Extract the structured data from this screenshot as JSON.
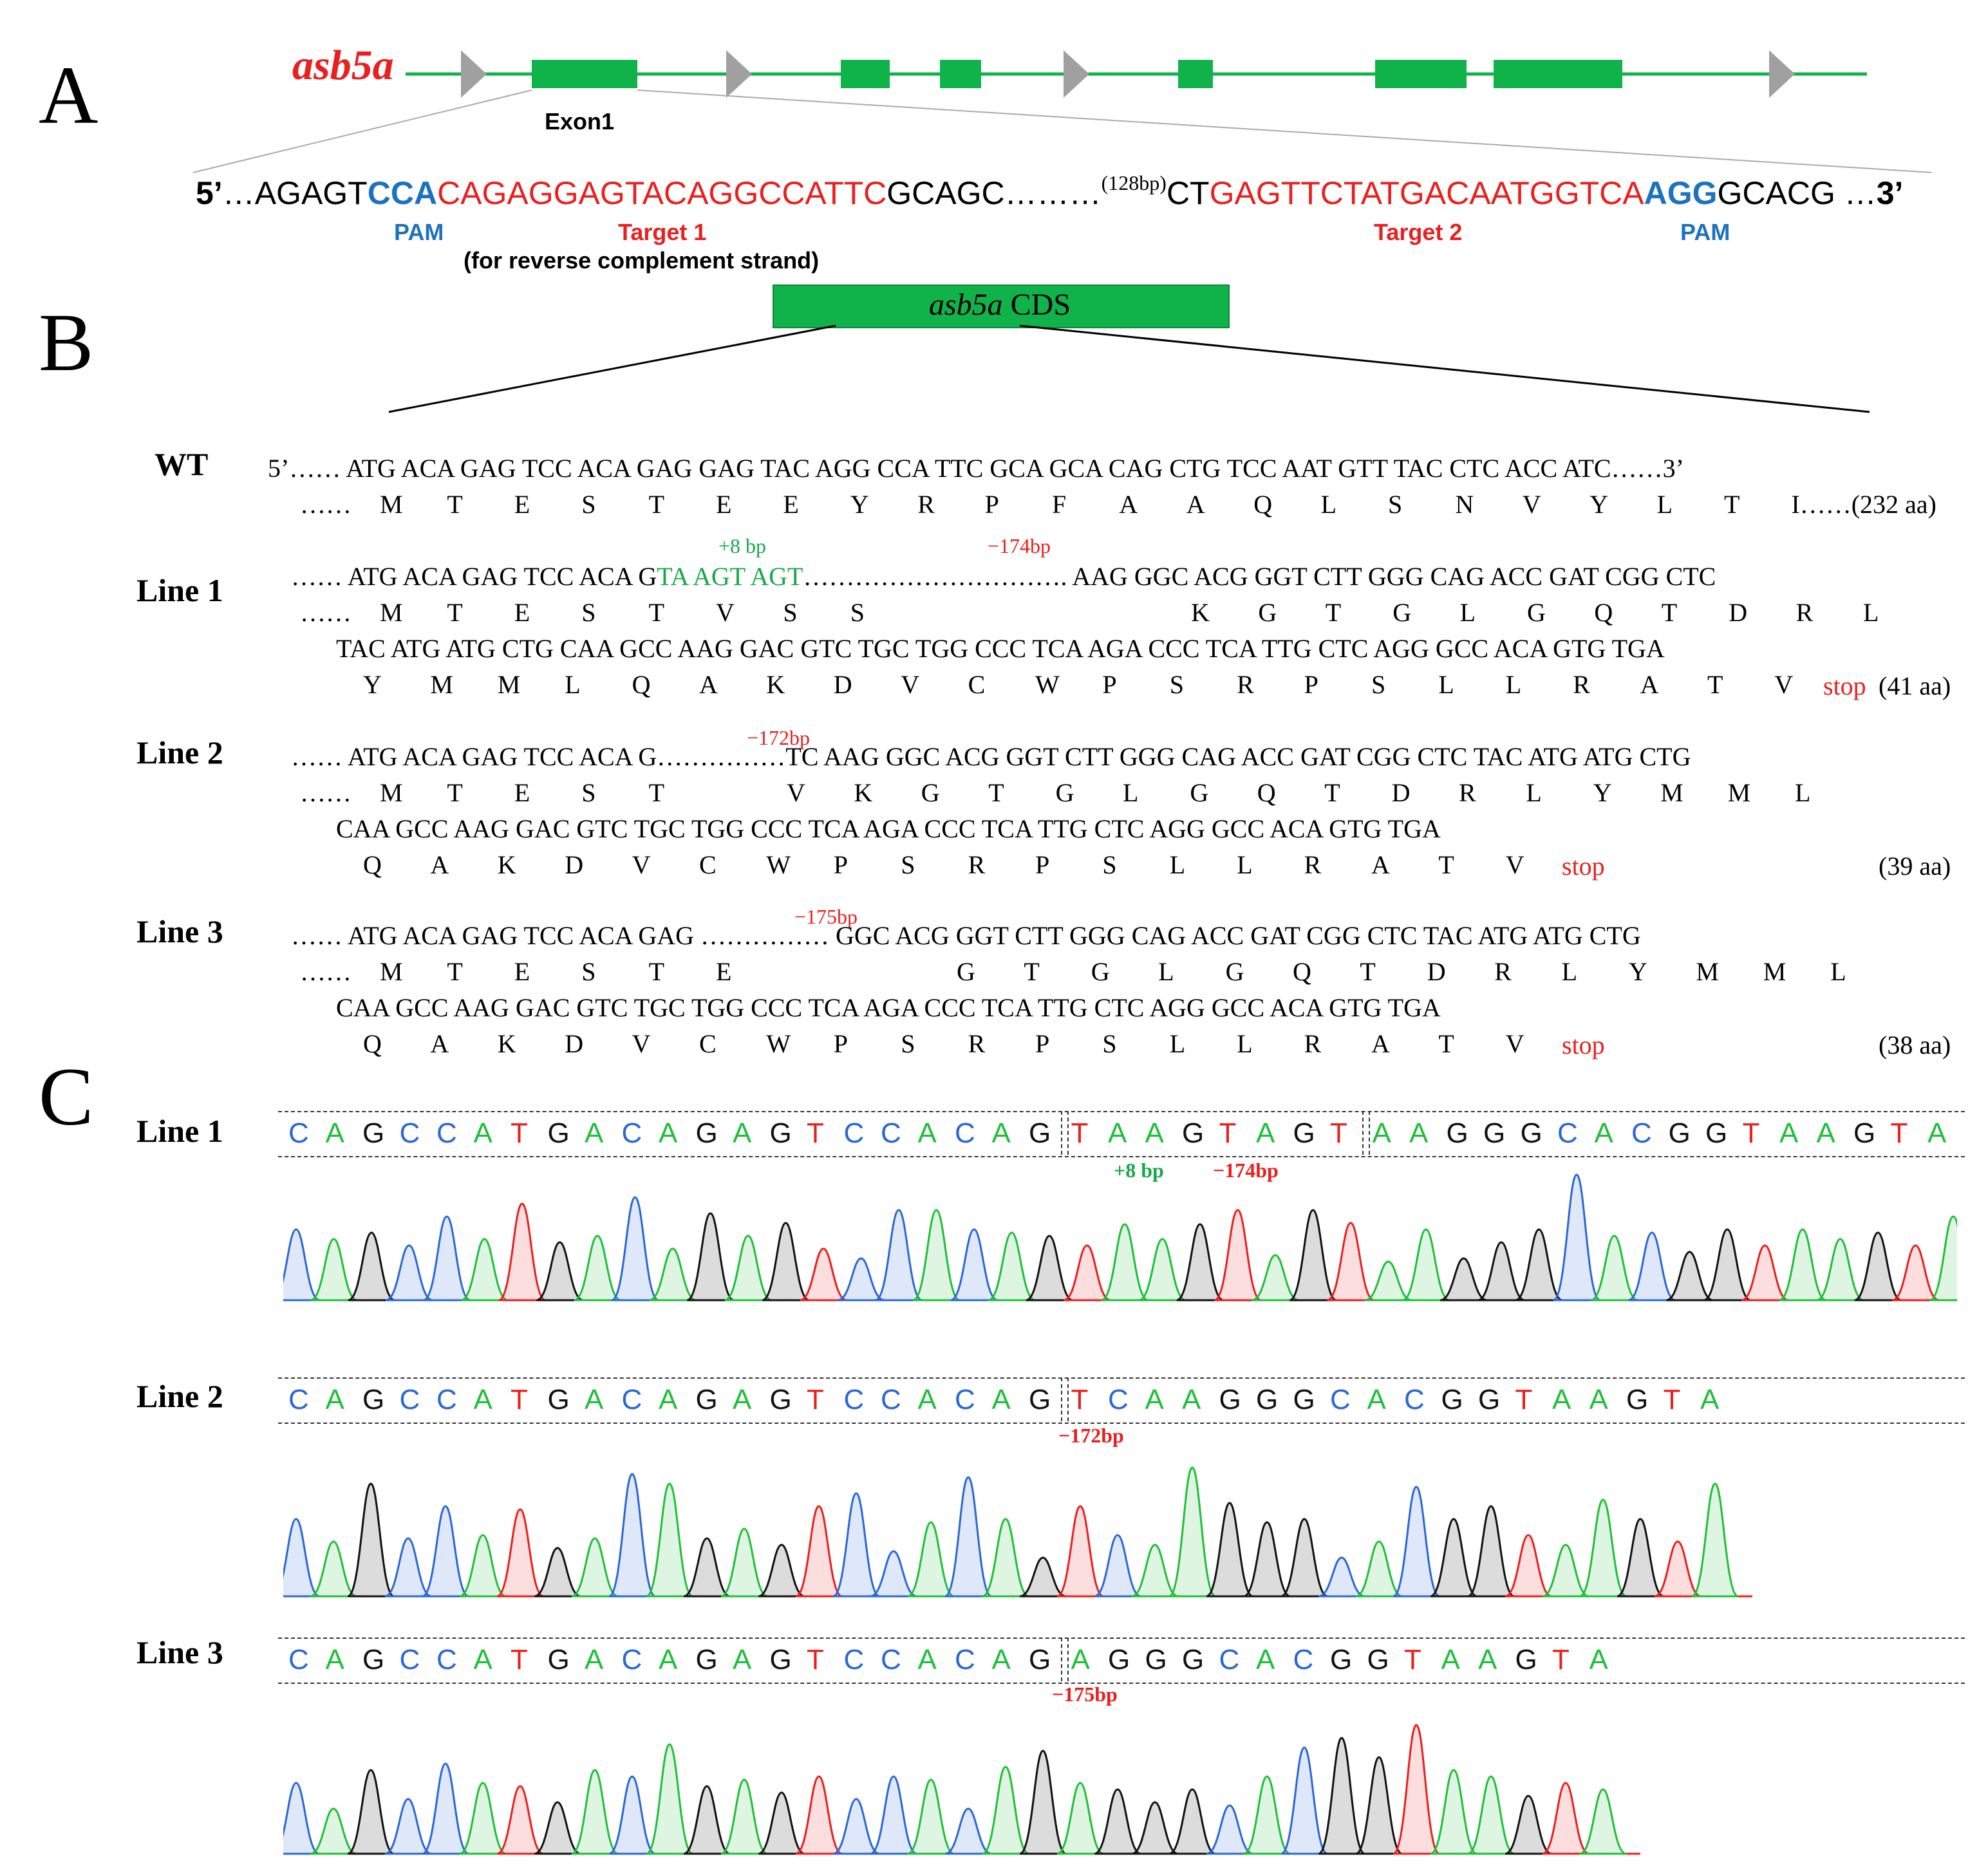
{
  "panels": {
    "A": "A",
    "B": "B",
    "C": "C"
  },
  "panelA": {
    "gene_name": "asb5a",
    "exon_label": "Exon1",
    "seq": {
      "p5": "5’",
      "lead": "…AGAGT",
      "pam1": "CCA",
      "target1": "CAGAGGAGTACAGGCCATTC",
      "mid1": "GCAGC………",
      "gap": "(128bp)",
      "mid2": "CT",
      "target2": "GAGTTCTATGACAATGGTCA",
      "pam2": "AGG",
      "tail": "GCACG …",
      "p3": "3’"
    },
    "labels": {
      "pam_left": "PAM",
      "target1": "Target 1",
      "target1_note": "(for reverse complement strand)",
      "target2": "Target 2",
      "pam_right": "PAM"
    },
    "colors": {
      "exon": "#10b24a",
      "intron_line": "#10b24a",
      "arrow": "#a0a0a0"
    }
  },
  "panelB": {
    "cds_label_gene": "asb5a",
    "cds_label_rest": "CDS",
    "wt": {
      "label": "WT",
      "seq": "5’…… ATG ACA GAG TCC ACA GAG GAG TAC AGG CCA TTC GCA GCA CAG CTG TCC AAT GTT TAC CTC ACC ATC……3’",
      "aa": [
        "M",
        "T",
        "E",
        "S",
        "T",
        "E",
        "E",
        "Y",
        "R",
        "P",
        "F",
        "A",
        "A",
        "Q",
        "L",
        "S",
        "N",
        "V",
        "Y",
        "L",
        "T",
        "I……(232 aa)"
      ],
      "aa_prefix": "……"
    },
    "line1": {
      "label": "Line 1",
      "ins": "+8 bp",
      "del": "−174bp",
      "seq1a": "…… ATG ACA GAG TCC ACA G",
      "seq1b": "TA AGT AGT",
      "seq1c": "…………………………. AAG GGC ACG GGT CTT GGG CAG ACC GAT CGG CTC",
      "aa1a": [
        "M",
        "T",
        "E",
        "S",
        "T",
        "V",
        "S",
        "S"
      ],
      "aa1b": [
        "K",
        "G",
        "T",
        "G",
        "L",
        "G",
        "Q",
        "T",
        "D",
        "R",
        "L"
      ],
      "seq2": "TAC ATG ATG CTG CAA GCC AAG GAC GTC TGC TGG CCC TCA AGA CCC TCA TTG CTC AGG GCC ACA GTG TGA",
      "aa2": [
        "Y",
        "M",
        "M",
        "L",
        "Q",
        "A",
        "K",
        "D",
        "V",
        "C",
        "W",
        "P",
        "S",
        "R",
        "P",
        "S",
        "L",
        "L",
        "R",
        "A",
        "T",
        "V"
      ],
      "stop": "stop",
      "len": "(41 aa)"
    },
    "line2": {
      "label": "Line 2",
      "del": "−172bp",
      "seq1": "…… ATG ACA GAG TCC ACA G……………TC AAG GGC ACG GGT CTT GGG CAG ACC GAT CGG CTC TAC ATG ATG CTG",
      "aa1": [
        "M",
        "T",
        "E",
        "S",
        "T",
        "V",
        "K",
        "G",
        "T",
        "G",
        "L",
        "G",
        "Q",
        "T",
        "D",
        "R",
        "L",
        "Y",
        "M",
        "M",
        "L"
      ],
      "seq2": "CAA GCC AAG GAC GTC TGC TGG CCC TCA AGA CCC TCA TTG CTC AGG GCC ACA GTG TGA",
      "aa2": [
        "Q",
        "A",
        "K",
        "D",
        "V",
        "C",
        "W",
        "P",
        "S",
        "R",
        "P",
        "S",
        "L",
        "L",
        "R",
        "A",
        "T",
        "V"
      ],
      "stop": "stop",
      "len": "(39 aa)"
    },
    "line3": {
      "label": "Line 3",
      "del": "−175bp",
      "seq1": "…… ATG ACA GAG TCC ACA GAG …………… GGC ACG GGT CTT GGG CAG ACC GAT CGG CTC TAC ATG ATG CTG",
      "aa1": [
        "M",
        "T",
        "E",
        "S",
        "T",
        "E",
        "G",
        "T",
        "G",
        "L",
        "G",
        "Q",
        "T",
        "D",
        "R",
        "L",
        "Y",
        "M",
        "M",
        "L"
      ],
      "seq2": "CAA GCC AAG GAC GTC TGC TGG CCC TCA AGA CCC TCA TTG CTC AGG GCC ACA GTG TGA",
      "aa2": [
        "Q",
        "A",
        "K",
        "D",
        "V",
        "C",
        "W",
        "P",
        "S",
        "R",
        "P",
        "S",
        "L",
        "L",
        "R",
        "A",
        "T",
        "V"
      ],
      "stop": "stop",
      "len": "(38 aa)"
    }
  },
  "panelC": {
    "line1": {
      "label": "Line 1",
      "seq": [
        "CAGCCATGACAGAGTCCACAG",
        "TAAGTAGT",
        "AAGGGCACGGTAAGTA"
      ],
      "ins": "+8 bp",
      "del": "−174bp"
    },
    "line2": {
      "label": "Line 2",
      "seq": [
        "CAGCCATGACAGAGTCCACAG",
        "TCAAGGGCACGGTAAGTA"
      ],
      "del": "−172bp"
    },
    "line3": {
      "label": "Line 3",
      "seq": [
        "CAGCCATGACAGAGTCCACAG",
        "AGGGCACGGTAAGTA"
      ],
      "del": "−175bp"
    },
    "base_colors": {
      "A": "#1fbf3a",
      "C": "#2b67d4",
      "G": "#111111",
      "T": "#e8201f"
    }
  }
}
